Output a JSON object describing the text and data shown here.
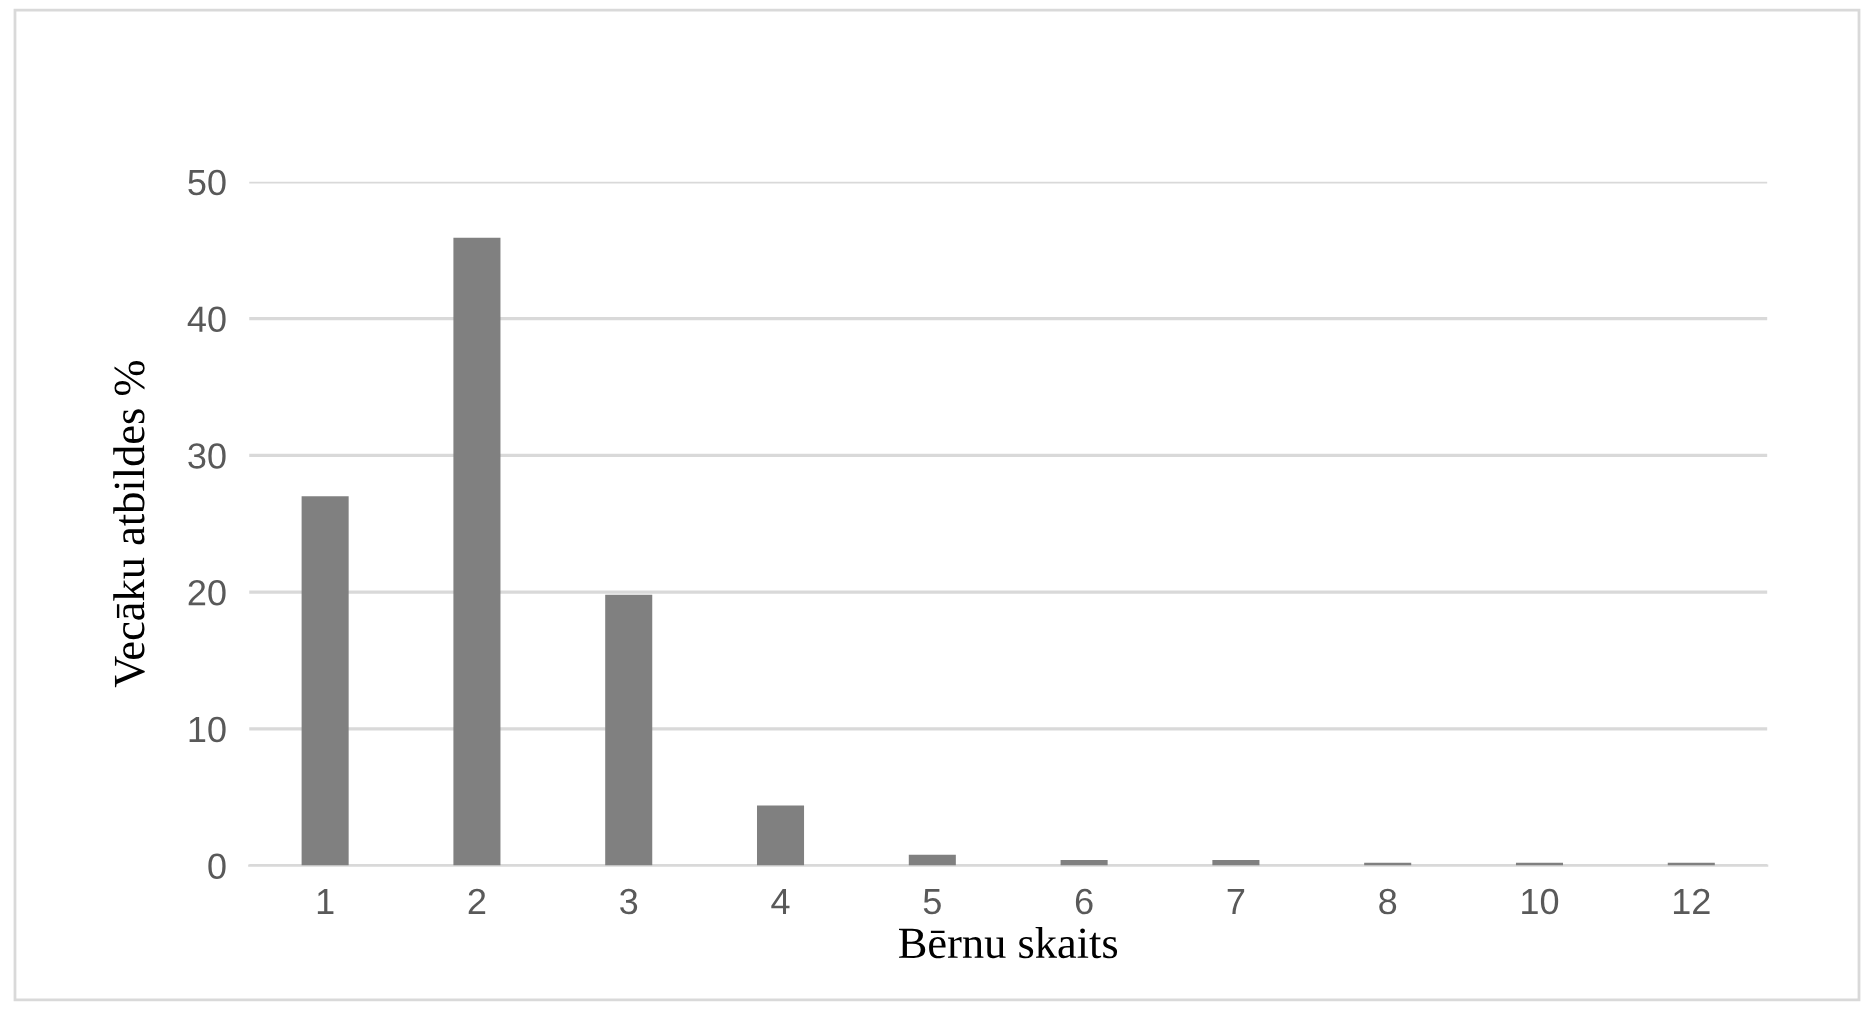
{
  "chart_data": {
    "type": "bar",
    "xlabel": "Bērnu skaits",
    "ylabel": "Vecāku atbildes %",
    "categories": [
      "1",
      "2",
      "3",
      "4",
      "5",
      "6",
      "7",
      "8",
      "10",
      "12"
    ],
    "values": [
      27.0,
      45.9,
      19.8,
      4.4,
      0.8,
      0.4,
      0.4,
      0.2,
      0.2,
      0.2
    ],
    "color": "#808080",
    "ylim": [
      0,
      50
    ],
    "yticks": [
      0,
      10,
      20,
      30,
      40,
      50
    ],
    "grid": "y",
    "legend": false
  }
}
